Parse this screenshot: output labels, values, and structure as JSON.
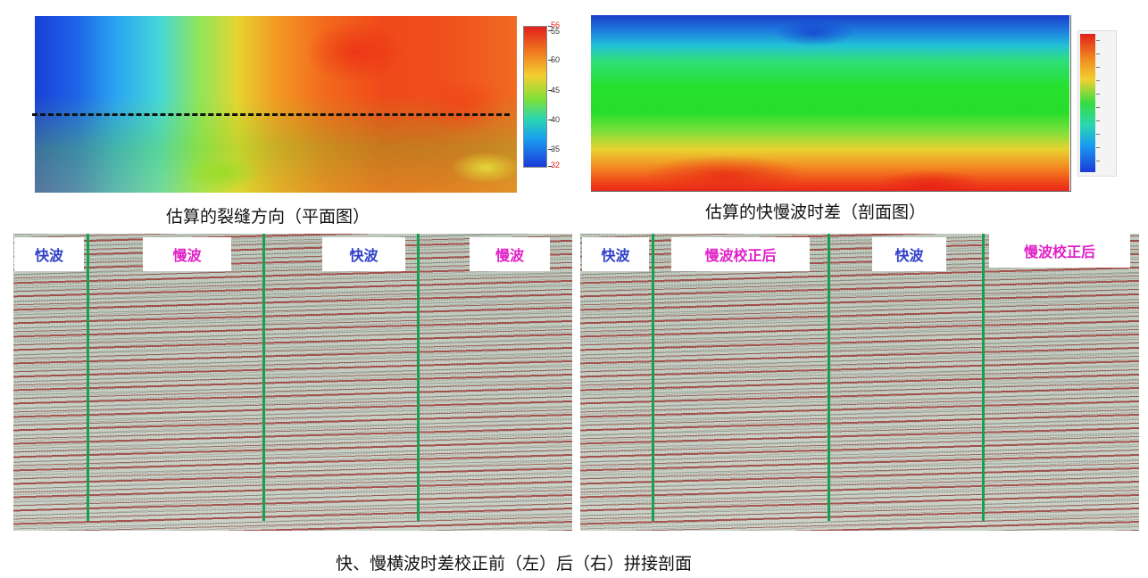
{
  "colors": {
    "fast_label": "#2f3fc8",
    "slow_label": "#e020c8",
    "divider": "#18a050"
  },
  "top_left": {
    "caption": "估算的裂缝方向（平面图）",
    "colorbar_ticks": [
      "56",
      "55",
      "50",
      "45",
      "40",
      "35",
      "32"
    ]
  },
  "top_right": {
    "caption": "估算的快慢波时差（剖面图）"
  },
  "bottom_left": {
    "labels": [
      "快波",
      "慢波",
      "快波",
      "慢波"
    ]
  },
  "bottom_right": {
    "labels": [
      "快波",
      "慢波校正后",
      "快波",
      "慢波校正后"
    ]
  },
  "main_caption": "快、慢横波时差校正前（左）后（右）拼接剖面"
}
